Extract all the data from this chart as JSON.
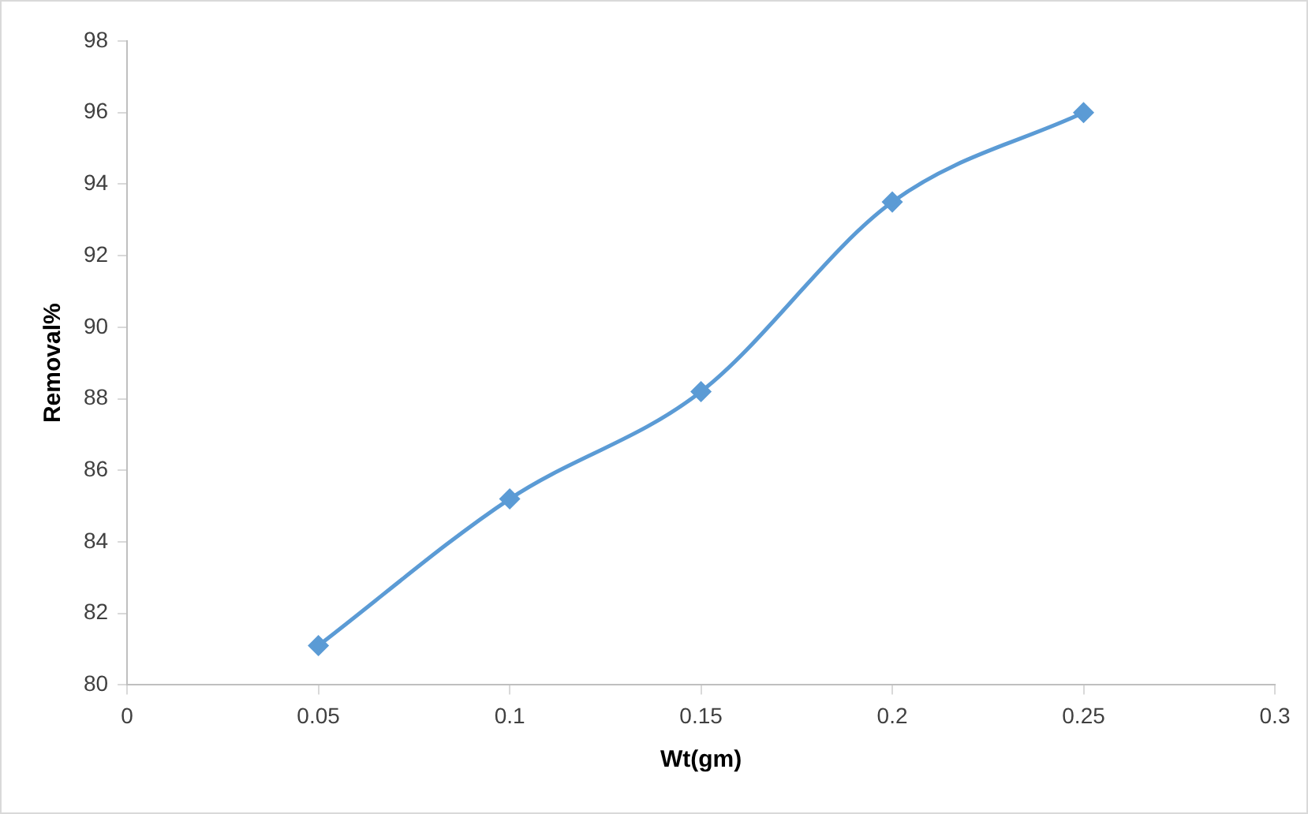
{
  "chart_data": {
    "type": "line",
    "xlabel": "Wt(gm)",
    "ylabel": "Removal%",
    "x": [
      0.05,
      0.1,
      0.15,
      0.2,
      0.25
    ],
    "series": [
      {
        "color": "#5b9bd5",
        "values": [
          81.1,
          85.2,
          88.2,
          93.5,
          96.0
        ]
      }
    ],
    "xlim": [
      0,
      0.3
    ],
    "xticks": [
      0,
      0.05,
      0.1,
      0.15,
      0.2,
      0.25,
      0.3
    ],
    "ylim": [
      80,
      98
    ],
    "yticks": [
      80,
      82,
      84,
      86,
      88,
      90,
      92,
      94,
      96,
      98
    ],
    "grid": false,
    "legend": false,
    "marker": "diamond",
    "line_style": "solid"
  }
}
